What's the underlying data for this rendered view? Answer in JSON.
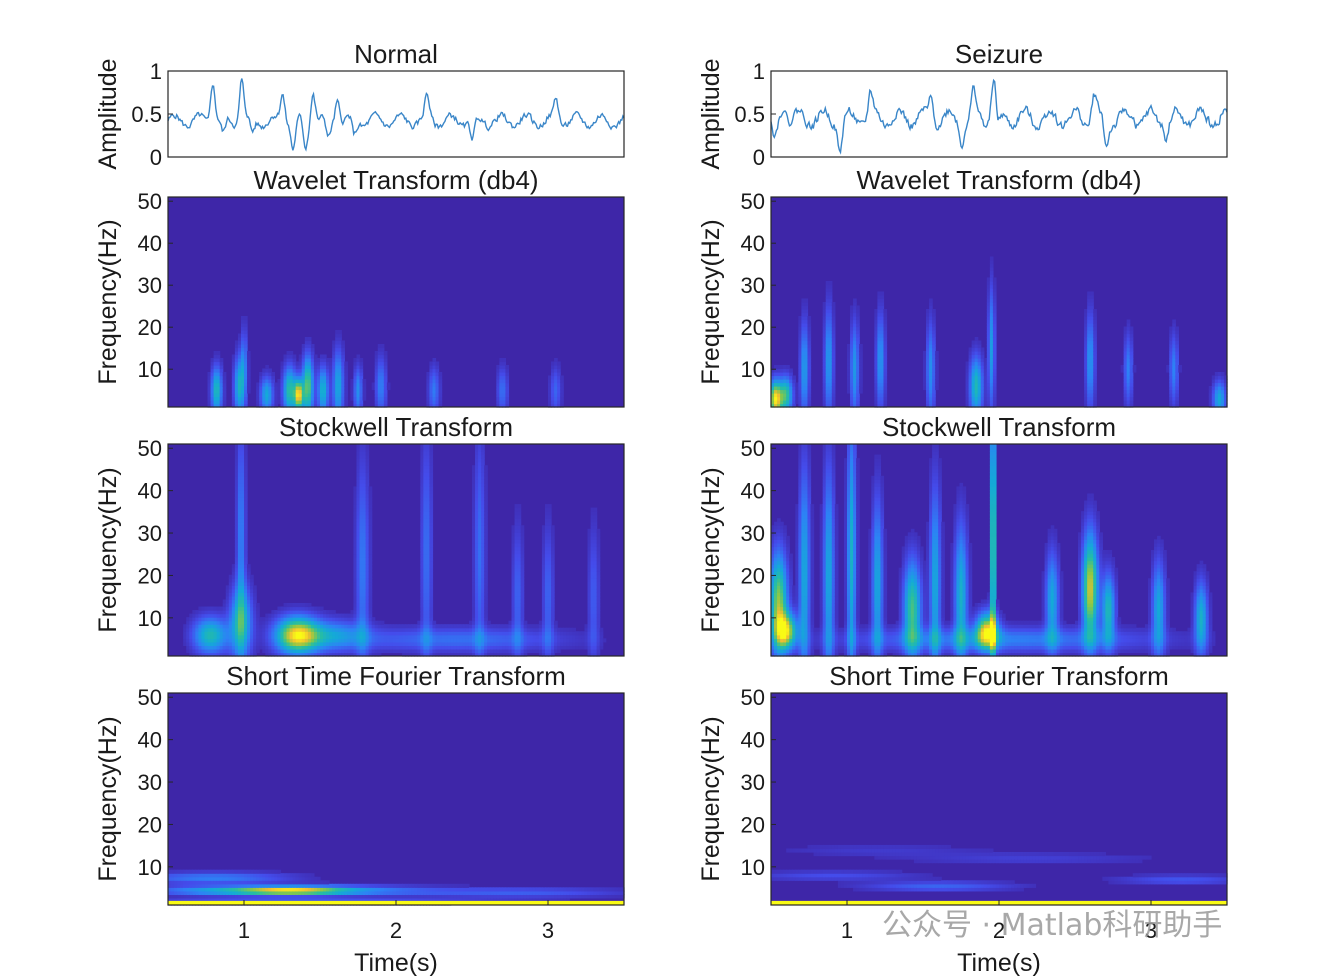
{
  "watermark": {
    "text": "公众号 · Matlab科研助手"
  },
  "colors": {
    "signal": "#3a86c8",
    "colormap": "parula",
    "background": "#3e26a8"
  },
  "chart_data": [
    {
      "type": "line",
      "title": "Normal",
      "xlabel": "",
      "ylabel": "Amplitude",
      "xlim": [
        0.5,
        3.5
      ],
      "ylim": [
        0,
        1
      ],
      "yticks": [
        0,
        0.5,
        1
      ],
      "ytick_labels": [
        "0",
        "0.5",
        "1"
      ],
      "baseline": 0.42,
      "noise": 0.07,
      "spikes": [
        {
          "t": 0.79,
          "y": 1.0
        },
        {
          "t": 0.86,
          "y": 0.2
        },
        {
          "t": 0.98,
          "y": 1.0
        },
        {
          "t": 1.05,
          "y": 0.22
        },
        {
          "t": 1.25,
          "y": 0.8
        },
        {
          "t": 1.32,
          "y": 0.05
        },
        {
          "t": 1.4,
          "y": 0.05
        },
        {
          "t": 1.45,
          "y": 0.85
        },
        {
          "t": 1.55,
          "y": 0.15
        },
        {
          "t": 1.61,
          "y": 0.75
        },
        {
          "t": 1.72,
          "y": 0.2
        },
        {
          "t": 2.2,
          "y": 0.72
        },
        {
          "t": 2.5,
          "y": 0.15
        },
        {
          "t": 3.05,
          "y": 0.7
        }
      ]
    },
    {
      "type": "line",
      "title": "Seizure",
      "xlabel": "",
      "ylabel": "Amplitude",
      "xlim": [
        0.5,
        3.5
      ],
      "ylim": [
        0,
        1
      ],
      "yticks": [
        0,
        0.5,
        1
      ],
      "ytick_labels": [
        "0",
        "0.5",
        "1"
      ],
      "baseline": 0.45,
      "noise": 0.1,
      "spikes": [
        {
          "t": 0.52,
          "y": 0.12
        },
        {
          "t": 0.58,
          "y": 0.7
        },
        {
          "t": 0.95,
          "y": 0.05
        },
        {
          "t": 1.15,
          "y": 0.75
        },
        {
          "t": 1.55,
          "y": 0.72
        },
        {
          "t": 1.75,
          "y": 0.2
        },
        {
          "t": 1.83,
          "y": 0.75
        },
        {
          "t": 1.96,
          "y": 1.0
        },
        {
          "t": 1.99,
          "y": 0.25
        },
        {
          "t": 2.62,
          "y": 0.78
        },
        {
          "t": 2.7,
          "y": 0.05
        },
        {
          "t": 3.1,
          "y": 0.25
        }
      ]
    },
    {
      "type": "heatmap",
      "title": "Wavelet Transform (db4)",
      "xlabel": "",
      "ylabel": "Frequency(Hz)",
      "xlim": [
        0.5,
        3.5
      ],
      "ylim": [
        1,
        51
      ],
      "yticks": [
        10,
        20,
        30,
        40,
        50
      ],
      "ytick_labels": [
        "10",
        "20",
        "30",
        "40",
        "50"
      ],
      "colormap": "parula",
      "blobs": [
        {
          "t": 0.82,
          "f": 5,
          "dt": 0.025,
          "df": 4,
          "a": 0.55
        },
        {
          "t": 0.97,
          "f": 6,
          "dt": 0.025,
          "df": 5,
          "a": 0.5
        },
        {
          "t": 1.15,
          "f": 4,
          "dt": 0.03,
          "df": 3,
          "a": 0.45
        },
        {
          "t": 1.3,
          "f": 5,
          "dt": 0.03,
          "df": 4,
          "a": 0.6
        },
        {
          "t": 1.36,
          "f": 4,
          "dt": 0.02,
          "df": 2.5,
          "a": 0.9
        },
        {
          "t": 1.42,
          "f": 6,
          "dt": 0.025,
          "df": 5,
          "a": 0.7
        },
        {
          "t": 1.52,
          "f": 5,
          "dt": 0.025,
          "df": 4,
          "a": 0.5
        },
        {
          "t": 1.62,
          "f": 6,
          "dt": 0.025,
          "df": 6,
          "a": 0.45
        },
        {
          "t": 1.75,
          "f": 5,
          "dt": 0.02,
          "df": 4,
          "a": 0.35
        },
        {
          "t": 1.9,
          "f": 6,
          "dt": 0.025,
          "df": 5,
          "a": 0.3
        },
        {
          "t": 2.25,
          "f": 5,
          "dt": 0.025,
          "df": 4,
          "a": 0.28
        },
        {
          "t": 2.7,
          "f": 5,
          "dt": 0.025,
          "df": 4,
          "a": 0.25
        },
        {
          "t": 3.05,
          "f": 5,
          "dt": 0.025,
          "df": 4,
          "a": 0.22
        },
        {
          "t": 1.0,
          "f": 12,
          "dt": 0.015,
          "df": 6,
          "a": 0.25
        }
      ]
    },
    {
      "type": "heatmap",
      "title": "Wavelet Transform (db4)",
      "xlabel": "",
      "ylabel": "Frequency(Hz)",
      "xlim": [
        0.5,
        3.5
      ],
      "ylim": [
        1,
        51
      ],
      "yticks": [
        10,
        20,
        30,
        40,
        50
      ],
      "ytick_labels": [
        "10",
        "20",
        "30",
        "40",
        "50"
      ],
      "colormap": "parula",
      "blobs": [
        {
          "t": 0.53,
          "f": 3,
          "dt": 0.03,
          "df": 3,
          "a": 0.95
        },
        {
          "t": 0.6,
          "f": 4,
          "dt": 0.03,
          "df": 3,
          "a": 0.6
        },
        {
          "t": 0.72,
          "f": 10,
          "dt": 0.02,
          "df": 8,
          "a": 0.4
        },
        {
          "t": 0.88,
          "f": 12,
          "dt": 0.02,
          "df": 9,
          "a": 0.4
        },
        {
          "t": 1.05,
          "f": 10,
          "dt": 0.02,
          "df": 8,
          "a": 0.38
        },
        {
          "t": 1.22,
          "f": 12,
          "dt": 0.02,
          "df": 8,
          "a": 0.38
        },
        {
          "t": 1.55,
          "f": 10,
          "dt": 0.02,
          "df": 8,
          "a": 0.35
        },
        {
          "t": 1.85,
          "f": 6,
          "dt": 0.03,
          "df": 5,
          "a": 0.55
        },
        {
          "t": 1.95,
          "f": 15,
          "dt": 0.015,
          "df": 10,
          "a": 0.4
        },
        {
          "t": 2.6,
          "f": 12,
          "dt": 0.02,
          "df": 8,
          "a": 0.38
        },
        {
          "t": 2.85,
          "f": 10,
          "dt": 0.02,
          "df": 6,
          "a": 0.3
        },
        {
          "t": 3.15,
          "f": 10,
          "dt": 0.02,
          "df": 6,
          "a": 0.3
        },
        {
          "t": 3.45,
          "f": 3,
          "dt": 0.03,
          "df": 3,
          "a": 0.45
        }
      ]
    },
    {
      "type": "heatmap",
      "title": "Stockwell Transform",
      "xlabel": "",
      "ylabel": "Frequency(Hz)",
      "xlim": [
        0.5,
        3.5
      ],
      "ylim": [
        1,
        51
      ],
      "yticks": [
        10,
        20,
        30,
        40,
        50
      ],
      "ytick_labels": [
        "10",
        "20",
        "30",
        "40",
        "50"
      ],
      "colormap": "parula",
      "blobs": [
        {
          "t": 0.78,
          "f": 6,
          "dt": 0.08,
          "df": 3,
          "a": 0.55
        },
        {
          "t": 0.98,
          "f": 9,
          "dt": 0.05,
          "df": 6,
          "a": 0.55
        },
        {
          "t": 0.98,
          "f": 30,
          "dt": 0.02,
          "df": 18,
          "a": 0.3
        },
        {
          "t": 1.35,
          "f": 6,
          "dt": 0.1,
          "df": 3,
          "a": 0.9
        },
        {
          "t": 1.6,
          "f": 6,
          "dt": 0.15,
          "df": 2.5,
          "a": 0.35
        },
        {
          "t": 1.78,
          "f": 22,
          "dt": 0.03,
          "df": 18,
          "a": 0.28
        },
        {
          "t": 2.2,
          "f": 25,
          "dt": 0.025,
          "df": 20,
          "a": 0.25
        },
        {
          "t": 2.55,
          "f": 25,
          "dt": 0.025,
          "df": 20,
          "a": 0.25
        },
        {
          "t": 2.8,
          "f": 15,
          "dt": 0.025,
          "df": 12,
          "a": 0.22
        },
        {
          "t": 3.0,
          "f": 15,
          "dt": 0.025,
          "df": 12,
          "a": 0.22
        },
        {
          "t": 3.3,
          "f": 15,
          "dt": 0.025,
          "df": 12,
          "a": 0.2
        },
        {
          "t": 2.4,
          "f": 5,
          "dt": 0.5,
          "df": 2,
          "a": 0.25
        }
      ]
    },
    {
      "type": "heatmap",
      "title": "Stockwell Transform",
      "xlabel": "",
      "ylabel": "Frequency(Hz)",
      "xlim": [
        0.5,
        3.5
      ],
      "ylim": [
        1,
        51
      ],
      "yticks": [
        10,
        20,
        30,
        40,
        50
      ],
      "ytick_labels": [
        "10",
        "20",
        "30",
        "40",
        "50"
      ],
      "colormap": "parula",
      "blobs": [
        {
          "t": 0.55,
          "f": 14,
          "dt": 0.04,
          "df": 8,
          "a": 0.75
        },
        {
          "t": 0.6,
          "f": 7,
          "dt": 0.05,
          "df": 3,
          "a": 0.8
        },
        {
          "t": 0.72,
          "f": 20,
          "dt": 0.025,
          "df": 18,
          "a": 0.45
        },
        {
          "t": 0.88,
          "f": 20,
          "dt": 0.025,
          "df": 18,
          "a": 0.45
        },
        {
          "t": 1.03,
          "f": 25,
          "dt": 0.02,
          "df": 22,
          "a": 0.5
        },
        {
          "t": 1.2,
          "f": 18,
          "dt": 0.025,
          "df": 14,
          "a": 0.45
        },
        {
          "t": 1.43,
          "f": 12,
          "dt": 0.04,
          "df": 8,
          "a": 0.65
        },
        {
          "t": 1.58,
          "f": 18,
          "dt": 0.025,
          "df": 16,
          "a": 0.45
        },
        {
          "t": 1.75,
          "f": 15,
          "dt": 0.03,
          "df": 12,
          "a": 0.5
        },
        {
          "t": 1.92,
          "f": 7,
          "dt": 0.05,
          "df": 3,
          "a": 0.85
        },
        {
          "t": 1.96,
          "f": 28,
          "dt": 0.012,
          "df": 24,
          "a": 0.75
        },
        {
          "t": 2.35,
          "f": 14,
          "dt": 0.03,
          "df": 8,
          "a": 0.45
        },
        {
          "t": 2.6,
          "f": 17,
          "dt": 0.035,
          "df": 9,
          "a": 0.85
        },
        {
          "t": 2.72,
          "f": 12,
          "dt": 0.03,
          "df": 6,
          "a": 0.55
        },
        {
          "t": 3.05,
          "f": 12,
          "dt": 0.03,
          "df": 8,
          "a": 0.45
        },
        {
          "t": 3.33,
          "f": 10,
          "dt": 0.03,
          "df": 6,
          "a": 0.5
        },
        {
          "t": 2.0,
          "f": 5,
          "dt": 0.7,
          "df": 2,
          "a": 0.3
        }
      ]
    },
    {
      "type": "heatmap",
      "title": "Short Time Fourier Transform",
      "xlabel": "Time(s)",
      "ylabel": "Frequency(Hz)",
      "xlim": [
        0.5,
        3.5
      ],
      "ylim": [
        1,
        51
      ],
      "xticks": [
        1,
        2,
        3
      ],
      "xtick_labels": [
        "1",
        "2",
        "3"
      ],
      "yticks": [
        10,
        20,
        30,
        40,
        50
      ],
      "ytick_labels": [
        "10",
        "20",
        "30",
        "40",
        "50"
      ],
      "colormap": "parula",
      "blobs": [
        {
          "t": 1.3,
          "f": 4.5,
          "dt": 0.25,
          "df": 0.7,
          "a": 0.75
        },
        {
          "t": 0.8,
          "f": 4.5,
          "dt": 0.3,
          "df": 0.8,
          "a": 0.35
        },
        {
          "t": 1.7,
          "f": 4.5,
          "dt": 0.4,
          "df": 0.8,
          "a": 0.28
        },
        {
          "t": 2.8,
          "f": 4.0,
          "dt": 0.5,
          "df": 0.8,
          "a": 0.2
        },
        {
          "t": 0.8,
          "f": 7.5,
          "dt": 0.35,
          "df": 0.9,
          "a": 0.3
        },
        {
          "t": 1.4,
          "f": 2,
          "dt": 0.9,
          "df": 0.4,
          "a": 0.2
        }
      ],
      "bottom_row_hz": 1.5
    },
    {
      "type": "heatmap",
      "title": "Short Time Fourier Transform",
      "xlabel": "Time(s)",
      "ylabel": "Frequency(Hz)",
      "xlim": [
        0.5,
        3.5
      ],
      "ylim": [
        1,
        51
      ],
      "xticks": [
        1,
        2,
        3
      ],
      "xtick_labels": [
        "1",
        "2",
        "3"
      ],
      "yticks": [
        10,
        20,
        30,
        40,
        50
      ],
      "ytick_labels": [
        "10",
        "20",
        "30",
        "40",
        "50"
      ],
      "colormap": "parula",
      "blobs": [
        {
          "t": 1.6,
          "f": 5.5,
          "dt": 0.35,
          "df": 0.8,
          "a": 0.22
        },
        {
          "t": 3.2,
          "f": 7,
          "dt": 0.3,
          "df": 0.8,
          "a": 0.18
        },
        {
          "t": 0.9,
          "f": 8,
          "dt": 0.4,
          "df": 0.8,
          "a": 0.15
        },
        {
          "t": 2.2,
          "f": 12,
          "dt": 0.6,
          "df": 1,
          "a": 0.1
        },
        {
          "t": 1.2,
          "f": 14,
          "dt": 0.5,
          "df": 1,
          "a": 0.08
        }
      ],
      "bottom_row_hz": 1.5
    }
  ]
}
